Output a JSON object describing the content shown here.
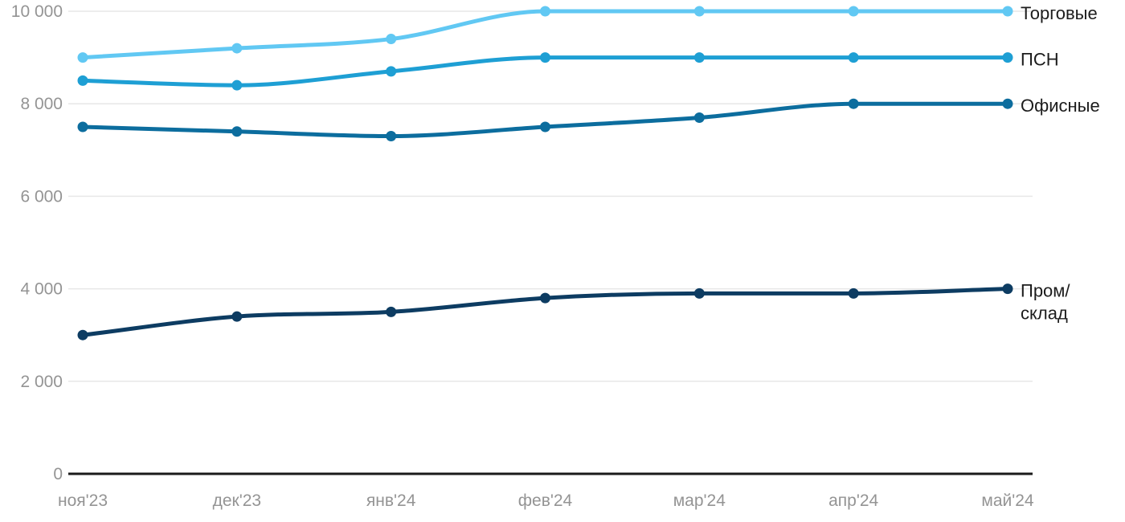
{
  "chart_data": {
    "type": "line",
    "title": "",
    "x": [
      "ноя'23",
      "дек'23",
      "янв'24",
      "фев'24",
      "мар'24",
      "апр'24",
      "май'24"
    ],
    "series": [
      {
        "name": "Торговые",
        "label_lines": [
          "Торговые"
        ],
        "color": "#61C8F3",
        "values": [
          9000,
          9200,
          9400,
          10000,
          10000,
          10000,
          10000
        ]
      },
      {
        "name": "ПСН",
        "label_lines": [
          "ПСН"
        ],
        "color": "#1E9FD4",
        "values": [
          8500,
          8400,
          8700,
          9000,
          9000,
          9000,
          9000
        ]
      },
      {
        "name": "Офисные",
        "label_lines": [
          "Офисные"
        ],
        "color": "#0C6D9E",
        "values": [
          7500,
          7400,
          7300,
          7500,
          7700,
          8000,
          8000
        ]
      },
      {
        "name": "Пром/склад",
        "label_lines": [
          "Пром/",
          "склад"
        ],
        "color": "#0D3C62",
        "values": [
          3000,
          3400,
          3500,
          3800,
          3900,
          3900,
          4000
        ]
      }
    ],
    "y_ticks": [
      0,
      2000,
      4000,
      6000,
      8000,
      10000
    ],
    "y_tick_labels": [
      "0",
      "2 000",
      "4 000",
      "6 000",
      "8 000",
      "10 000"
    ],
    "ylim": [
      0,
      10000
    ],
    "grid": true,
    "legend_position": "right-end-of-lines",
    "colors": {
      "background": "#FFFFFF",
      "gridline": "#E7E7E7",
      "axis_line": "#1A1A1A",
      "axis_text": "#949494",
      "legend_text": "#1C1C1C"
    }
  }
}
